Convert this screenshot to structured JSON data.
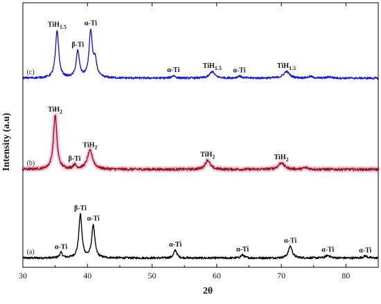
{
  "chart_data": {
    "type": "line",
    "xlabel": "2θ",
    "ylabel": "Intensity (a.u)",
    "xlim": [
      30,
      85
    ],
    "x_ticks": [
      30,
      40,
      50,
      60,
      70,
      80
    ],
    "ylim": [
      0,
      1
    ],
    "colors": {
      "a": "#000000",
      "b_line": "#8b1a1a",
      "b_band": "#f7b6d6",
      "c": "#1a1acc"
    },
    "series": [
      {
        "name": "(a)",
        "baseline": 0.035,
        "noise": 0.004,
        "peaks": [
          {
            "x": 35.9,
            "h": 0.02,
            "w": 0.25,
            "label": "α-Ti"
          },
          {
            "x": 38.9,
            "h": 0.165,
            "w": 0.28,
            "label": "β-Ti"
          },
          {
            "x": 40.9,
            "h": 0.125,
            "w": 0.28,
            "label": "α-Ti"
          },
          {
            "x": 53.6,
            "h": 0.03,
            "w": 0.28,
            "label": "α-Ti"
          },
          {
            "x": 64.0,
            "h": 0.012,
            "w": 0.3,
            "label": "α-Ti"
          },
          {
            "x": 71.4,
            "h": 0.045,
            "w": 0.35,
            "label": "α-Ti"
          },
          {
            "x": 77.2,
            "h": 0.01,
            "w": 0.4,
            "label": "α-Ti"
          },
          {
            "x": 83.0,
            "h": 0.008,
            "w": 0.35,
            "label": "α-Ti"
          }
        ]
      },
      {
        "name": "(b)",
        "baseline": 0.37,
        "noise": 0.005,
        "peaks": [
          {
            "x": 35.0,
            "h": 0.205,
            "w": 0.32,
            "label": "TiH",
            "sub": "2"
          },
          {
            "x": 38.0,
            "h": 0.015,
            "w": 0.3,
            "label": "β-Ti"
          },
          {
            "x": 40.4,
            "h": 0.07,
            "w": 0.5,
            "label": "TiH",
            "sub": "2"
          },
          {
            "x": 58.6,
            "h": 0.035,
            "w": 0.45,
            "label": "TiH",
            "sub": "2"
          },
          {
            "x": 70.0,
            "h": 0.025,
            "w": 0.55,
            "label": "TiH",
            "sub": "2"
          },
          {
            "x": 73.8,
            "h": 0.006,
            "w": 0.5
          }
        ]
      },
      {
        "name": "(c)",
        "baseline": 0.715,
        "noise": 0.004,
        "peaks": [
          {
            "x": 35.3,
            "h": 0.18,
            "w": 0.3,
            "label": "TiH",
            "sub": "1.5"
          },
          {
            "x": 38.5,
            "h": 0.1,
            "w": 0.3,
            "label": "β-Ti"
          },
          {
            "x": 40.5,
            "h": 0.175,
            "w": 0.3,
            "label": "α-Ti"
          },
          {
            "x": 41.2,
            "h": 0.06,
            "w": 0.3
          },
          {
            "x": 53.3,
            "h": 0.01,
            "w": 0.3,
            "label": "α-Ti"
          },
          {
            "x": 59.3,
            "h": 0.025,
            "w": 0.45,
            "label": "TiH",
            "sub": "1.5"
          },
          {
            "x": 63.5,
            "h": 0.008,
            "w": 0.35,
            "label": "α-Ti"
          },
          {
            "x": 70.8,
            "h": 0.025,
            "w": 0.55,
            "label": "TiH",
            "sub": "1.5"
          },
          {
            "x": 74.5,
            "h": 0.006,
            "w": 0.4
          },
          {
            "x": 77.5,
            "h": 0.005,
            "w": 0.4
          }
        ]
      }
    ]
  }
}
